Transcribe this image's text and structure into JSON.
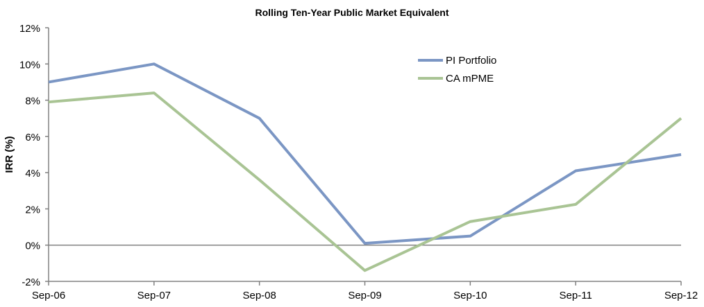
{
  "chart_data": {
    "type": "line",
    "title": "Rolling Ten-Year Public Market Equivalent",
    "xlabel": "",
    "ylabel": "IRR (%)",
    "ylim": [
      -2,
      12
    ],
    "yticks": [
      "-2%",
      "0%",
      "2%",
      "4%",
      "6%",
      "8%",
      "10%",
      "12%"
    ],
    "ytick_values": [
      -2,
      0,
      2,
      4,
      6,
      8,
      10,
      12
    ],
    "categories": [
      "Sep-06",
      "Sep-07",
      "Sep-08",
      "Sep-09",
      "Sep-10",
      "Sep-11",
      "Sep-12"
    ],
    "legend_position": "top-right",
    "grid": false,
    "series": [
      {
        "name": "PI Portfolio",
        "color": "#7B96C4",
        "values": [
          9.0,
          10.0,
          7.0,
          0.1,
          0.5,
          4.1,
          5.0
        ]
      },
      {
        "name": "CA mPME",
        "color": "#A9C494",
        "values": [
          7.9,
          8.4,
          3.6,
          -1.4,
          1.3,
          2.25,
          7.0
        ]
      }
    ]
  }
}
